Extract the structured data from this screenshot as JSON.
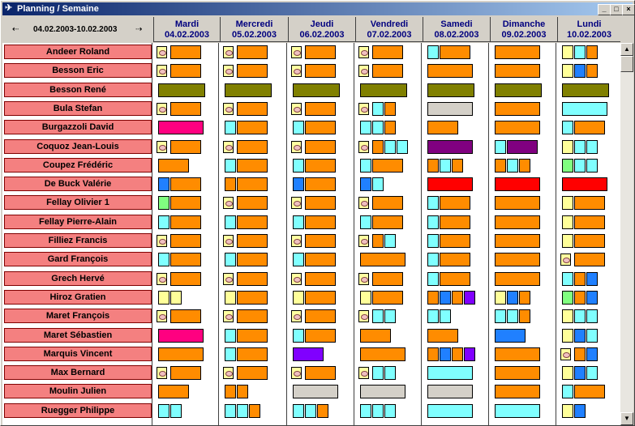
{
  "window": {
    "title": "Planning / Semaine",
    "min": "_",
    "max": "□",
    "close": "×"
  },
  "nav": {
    "prev": "⇠",
    "next": "⇢",
    "range": "04.02.2003-10.02.2003"
  },
  "days": [
    {
      "name": "Mardi",
      "date": "04.02.2003"
    },
    {
      "name": "Mercredi",
      "date": "05.02.2003"
    },
    {
      "name": "Jeudi",
      "date": "06.02.2003"
    },
    {
      "name": "Vendredi",
      "date": "07.02.2003"
    },
    {
      "name": "Samedi",
      "date": "08.02.2003"
    },
    {
      "name": "Dimanche",
      "date": "09.02.2003"
    },
    {
      "name": "Lundi",
      "date": "10.02.2003"
    }
  ],
  "colors": {
    "orange": "#ff8c00",
    "cyan": "#80ffff",
    "blue": "#2080ff",
    "olive": "#808000",
    "pink": "#ff0080",
    "purple": "#8000ff",
    "darkpurple": "#800080",
    "red": "#ff0000",
    "gray": "#d4d0c8",
    "yellow": "#ffff99",
    "green": "#80ff80"
  },
  "employees": [
    {
      "name": "Andeer Roland",
      "cells": [
        [
          "L",
          "o2"
        ],
        [
          "L",
          "o2"
        ],
        [
          "L",
          "o2"
        ],
        [
          "L",
          "o2"
        ],
        [
          "c1",
          "o2"
        ],
        [
          "o3"
        ],
        [
          "y1",
          "c1",
          "o1"
        ]
      ]
    },
    {
      "name": "Besson Eric",
      "cells": [
        [
          "L",
          "o2"
        ],
        [
          "L",
          "o2"
        ],
        [
          "L",
          "o2"
        ],
        [
          "L",
          "o2"
        ],
        [
          "o3"
        ],
        [
          "o3"
        ],
        [
          "y1",
          "b1",
          "o1"
        ]
      ]
    },
    {
      "name": "Besson René",
      "cells": [
        [
          "v4"
        ],
        [
          "v4"
        ],
        [
          "v4"
        ],
        [
          "v4"
        ],
        [
          "v4"
        ],
        [
          "v4"
        ],
        [
          "v4"
        ]
      ]
    },
    {
      "name": "Bula Stefan",
      "cells": [
        [
          "L",
          "o2"
        ],
        [
          "L",
          "o2"
        ],
        [
          "L",
          "o2"
        ],
        [
          "L",
          "c1",
          "o1"
        ],
        [
          "g3"
        ],
        [
          "o3"
        ],
        [
          "c3"
        ]
      ]
    },
    {
      "name": "Burgazzoli David",
      "cells": [
        [
          "p3"
        ],
        [
          "c1",
          "o2"
        ],
        [
          "c1",
          "o2"
        ],
        [
          "c1",
          "c1",
          "o1"
        ],
        [
          "o2"
        ],
        [
          "o3"
        ],
        [
          "c1",
          "o2"
        ]
      ]
    },
    {
      "name": "Coquoz Jean-Louis",
      "cells": [
        [
          "L",
          "o2"
        ],
        [
          "L",
          "o2"
        ],
        [
          "L",
          "o2"
        ],
        [
          "L",
          "o1",
          "c1",
          "c1"
        ],
        [
          "d3"
        ],
        [
          "c1",
          "d2"
        ],
        [
          "y1",
          "c1",
          "c1"
        ]
      ]
    },
    {
      "name": "Coupez Frédéric",
      "cells": [
        [
          "o2"
        ],
        [
          "c1",
          "o2"
        ],
        [
          "c1",
          "o2"
        ],
        [
          "c1",
          "o2"
        ],
        [
          "o1",
          "c1",
          "o1"
        ],
        [
          "o1",
          "c1",
          "o1"
        ],
        [
          "g1",
          "c1",
          "c1"
        ]
      ]
    },
    {
      "name": "De Buck Valérie",
      "cells": [
        [
          "b1",
          "o2"
        ],
        [
          "o1",
          "o2"
        ],
        [
          "b1",
          "o2"
        ],
        [
          "b1",
          "c1"
        ],
        [
          "r3"
        ],
        [
          "r3"
        ],
        [
          "r3"
        ]
      ]
    },
    {
      "name": "Fellay Olivier 1",
      "cells": [
        [
          "g1",
          "o2"
        ],
        [
          "L",
          "o2"
        ],
        [
          "L",
          "o2"
        ],
        [
          "L",
          "o2"
        ],
        [
          "c1",
          "o2"
        ],
        [
          "o3"
        ],
        [
          "y1",
          "o2"
        ]
      ]
    },
    {
      "name": "Fellay Pierre-Alain",
      "cells": [
        [
          "c1",
          "o2"
        ],
        [
          "c1",
          "o2"
        ],
        [
          "c1",
          "o2"
        ],
        [
          "c1",
          "o2"
        ],
        [
          "c1",
          "o2"
        ],
        [
          "o3"
        ],
        [
          "y1",
          "o2"
        ]
      ]
    },
    {
      "name": "Filliez Francis",
      "cells": [
        [
          "L",
          "o2"
        ],
        [
          "L",
          "o2"
        ],
        [
          "L",
          "o2"
        ],
        [
          "L",
          "o1",
          "c1"
        ],
        [
          "c1",
          "o2"
        ],
        [
          "o3"
        ],
        [
          "y1",
          "o2"
        ]
      ]
    },
    {
      "name": "Gard François",
      "cells": [
        [
          "c1",
          "o2"
        ],
        [
          "c1",
          "o2"
        ],
        [
          "c1",
          "o2"
        ],
        [
          "o3"
        ],
        [
          "c1",
          "o2"
        ],
        [
          "o3"
        ],
        [
          "L",
          "o2"
        ]
      ]
    },
    {
      "name": "Grech Hervé",
      "cells": [
        [
          "L",
          "o2"
        ],
        [
          "L",
          "o2"
        ],
        [
          "L",
          "o2"
        ],
        [
          "L",
          "o2"
        ],
        [
          "c1",
          "o2"
        ],
        [
          "o3"
        ],
        [
          "c1",
          "o1",
          "b1"
        ]
      ]
    },
    {
      "name": "Hiroz Gratien",
      "cells": [
        [
          "y1",
          "y1"
        ],
        [
          "y1",
          "o2"
        ],
        [
          "y1",
          "o2"
        ],
        [
          "y1",
          "o2"
        ],
        [
          "o1",
          "b1",
          "o1",
          "v1"
        ],
        [
          "y1",
          "b1",
          "o1"
        ],
        [
          "g1",
          "o1",
          "b1"
        ]
      ]
    },
    {
      "name": "Maret François",
      "cells": [
        [
          "L",
          "o2"
        ],
        [
          "L",
          "o2"
        ],
        [
          "L",
          "o2"
        ],
        [
          "L",
          "c1",
          "c1"
        ],
        [
          "c1",
          "c1"
        ],
        [
          "c1",
          "c1",
          "o1"
        ],
        [
          "y1",
          "c1",
          "c1"
        ]
      ]
    },
    {
      "name": "Maret Sébastien",
      "cells": [
        [
          "p3"
        ],
        [
          "c1",
          "o2"
        ],
        [
          "c1",
          "o2"
        ],
        [
          "o2"
        ],
        [
          "o2"
        ],
        [
          "b2"
        ],
        [
          "y1",
          "b1",
          "c1"
        ]
      ]
    },
    {
      "name": "Marquis Vincent",
      "cells": [
        [
          "o3"
        ],
        [
          "c1",
          "o2"
        ],
        [
          "v2"
        ],
        [
          "o3"
        ],
        [
          "o1",
          "b1",
          "o1",
          "v1"
        ],
        [
          "o3"
        ],
        [
          "L",
          "o1",
          "b1"
        ]
      ]
    },
    {
      "name": "Max Bernard",
      "cells": [
        [
          "L",
          "o2"
        ],
        [
          "L",
          "o2"
        ],
        [
          "L",
          "o2"
        ],
        [
          "L",
          "c1",
          "c1"
        ],
        [
          "c3"
        ],
        [
          "o3"
        ],
        [
          "y1",
          "b1",
          "c1"
        ]
      ]
    },
    {
      "name": "Moulin Julien",
      "cells": [
        [
          "o2"
        ],
        [
          "o1",
          "o1"
        ],
        [
          "g3"
        ],
        [
          "g3"
        ],
        [
          "g3"
        ],
        [
          "o3"
        ],
        [
          "c1",
          "o2"
        ]
      ]
    },
    {
      "name": "Ruegger Philippe",
      "cells": [
        [
          "c1",
          "c1"
        ],
        [
          "c1",
          "c1",
          "o1"
        ],
        [
          "c1",
          "c1",
          "o1"
        ],
        [
          "c1",
          "c1",
          "c1"
        ],
        [
          "c3"
        ],
        [
          "c3"
        ],
        [
          "y1",
          "b1"
        ]
      ]
    }
  ]
}
